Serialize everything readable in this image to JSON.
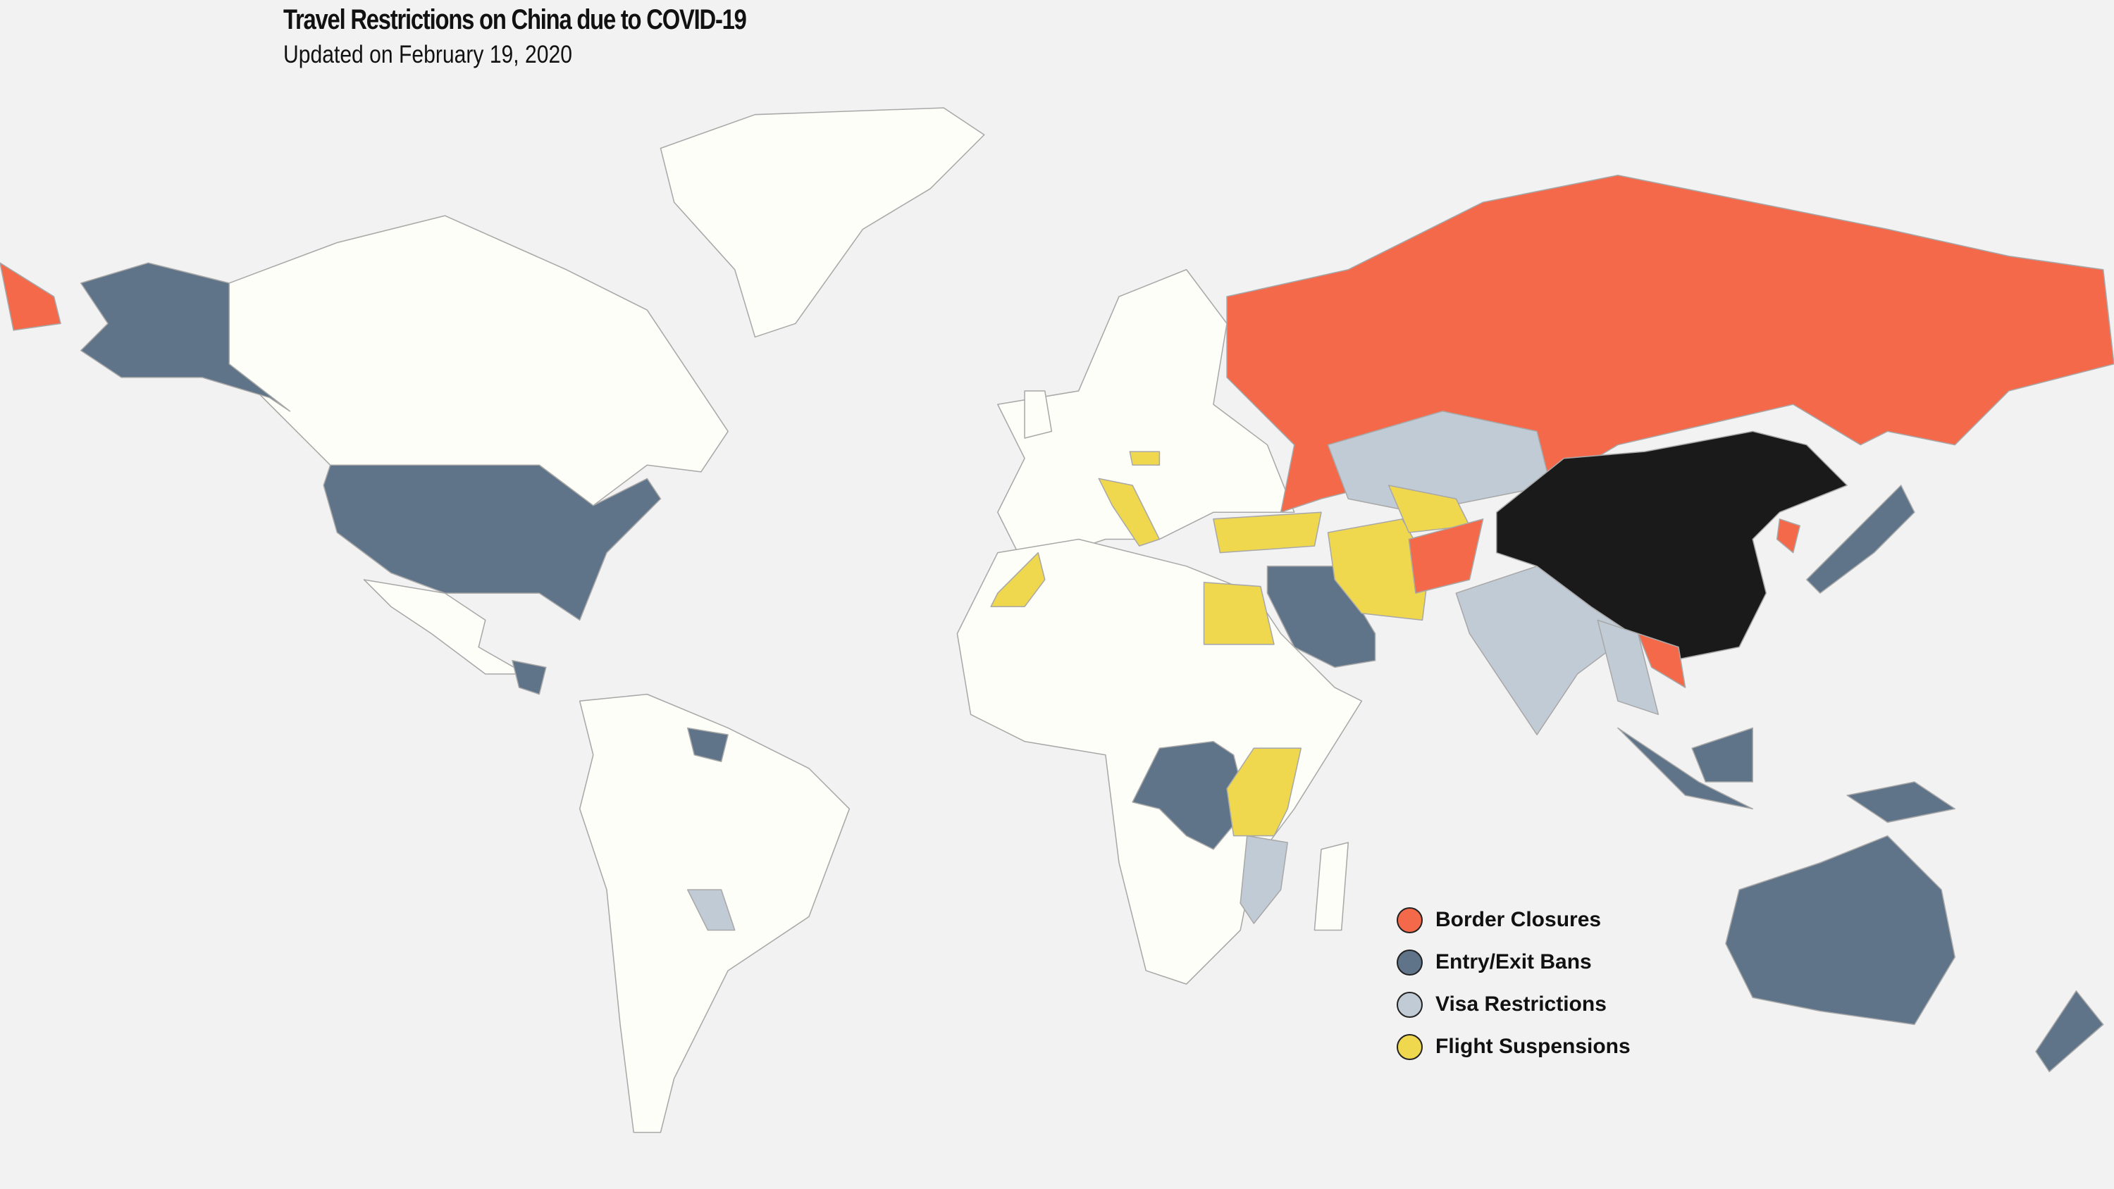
{
  "header": {
    "title": "Travel Restrictions on China due to COVID-19",
    "subtitle": "Updated on February 19, 2020"
  },
  "colors": {
    "background": "#f2f2f2",
    "land": "#fefef8",
    "border_closures": "#f4694a",
    "entry_exit_bans": "#5f7489",
    "visa_restrictions": "#c1cbd5",
    "flight_suspensions": "#f0d84e",
    "china": "#1a1a1a"
  },
  "legend": {
    "items": [
      {
        "label": "Border Closures",
        "color": "#f4694a"
      },
      {
        "label": "Entry/Exit Bans",
        "color": "#5f7489"
      },
      {
        "label": "Visa Restrictions",
        "color": "#c1cbd5"
      },
      {
        "label": "Flight Suspensions",
        "color": "#f0d84e"
      }
    ]
  }
}
